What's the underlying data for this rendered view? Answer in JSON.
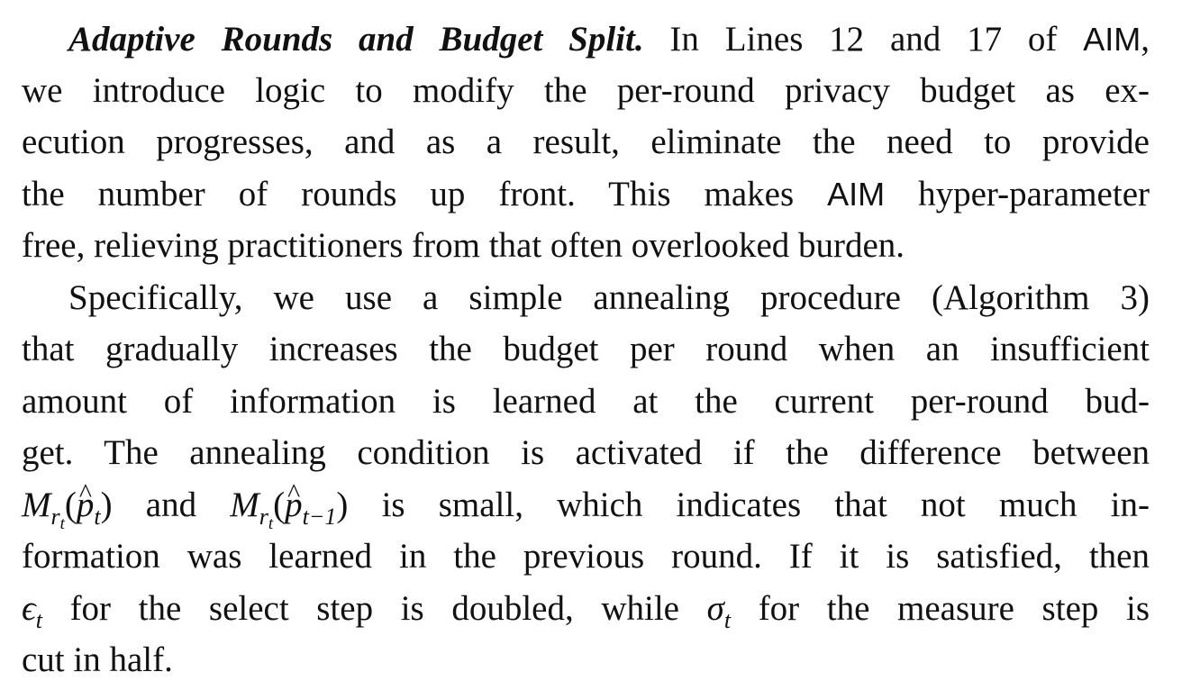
{
  "paragraph1": {
    "heading": "Adaptive Rounds and Budget Split.",
    "line1_a": "In Lines 12 and 17 of",
    "aim": "AIM",
    "line1_b": ",",
    "line2": "we introduce logic to modify the per-round privacy budget as ex-",
    "line3": "ecution progresses, and as a result, eliminate the need to provide",
    "line4_a": "the number of rounds up front. This makes",
    "line4_b": "hyper-parameter",
    "line5": "free, relieving practitioners from that often overlooked burden."
  },
  "paragraph2": {
    "line1": "Specifically, we use a simple annealing procedure (Algorithm 3)",
    "line2": "that gradually increases the budget per round when an insufficient",
    "line3": "amount of information is learned at the current per-round bud-",
    "line4": "get. The annealing condition is activated if the difference between",
    "line5_and": "and",
    "line5_rest": "is small, which indicates that not much in-",
    "line6": "formation was learned in the previous round. If it is satisfied, then",
    "line7_a": "for the select step is doubled, while",
    "line7_b": "for the measure step is",
    "line8": "cut in half."
  },
  "math": {
    "M": "M",
    "r": "r",
    "t": "t",
    "p": "p",
    "t_minus_1": "t−1",
    "lparen": "(",
    "rparen": ")",
    "epsilon": "ϵ",
    "sigma": "σ"
  }
}
